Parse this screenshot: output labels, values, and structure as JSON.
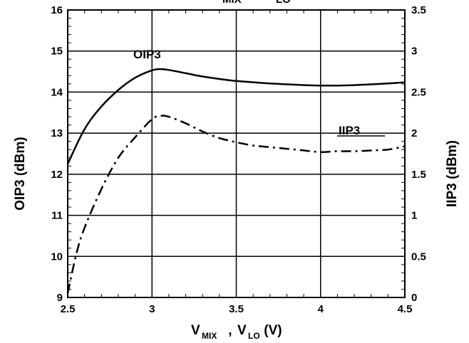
{
  "chart_data": {
    "type": "line",
    "title_fragment": {
      "main1": "MIX",
      "main2": "LO"
    },
    "xlabel": {
      "v1": "V",
      "sub1": "MIX",
      "sep": " , ",
      "v2": "V",
      "sub2": "LO",
      "unit": " (V)"
    },
    "ylabel_left": "OIP3 (dBm)",
    "ylabel_right": "IIP3 (dBm)",
    "xlim": [
      2.5,
      4.5
    ],
    "ylim_left": [
      9,
      16
    ],
    "ylim_right": [
      0,
      3.5
    ],
    "x_ticks": [
      "2.5",
      "3",
      "3.5",
      "4",
      "4.5"
    ],
    "y_left_ticks": [
      "9",
      "10",
      "11",
      "12",
      "13",
      "14",
      "15",
      "16"
    ],
    "y_right_ticks": [
      "0",
      "0.5",
      "1",
      "1.5",
      "2",
      "2.5",
      "3",
      "3.5"
    ],
    "grid": true,
    "series": [
      {
        "name": "OIP3",
        "axis": "left",
        "style": "solid",
        "x": [
          2.5,
          2.6,
          2.7,
          2.8,
          2.9,
          3.0,
          3.05,
          3.1,
          3.2,
          3.3,
          3.4,
          3.5,
          3.6,
          3.7,
          3.8,
          3.9,
          4.0,
          4.1,
          4.2,
          4.3,
          4.4,
          4.5
        ],
        "y": [
          12.25,
          13.1,
          13.65,
          14.05,
          14.35,
          14.53,
          14.56,
          14.54,
          14.46,
          14.38,
          14.32,
          14.27,
          14.24,
          14.21,
          14.19,
          14.17,
          14.16,
          14.16,
          14.17,
          14.19,
          14.21,
          14.24
        ]
      },
      {
        "name": "IIP3",
        "axis": "right",
        "style": "dash-dot",
        "x": [
          2.5,
          2.55,
          2.6,
          2.7,
          2.8,
          2.9,
          3.0,
          3.05,
          3.1,
          3.2,
          3.3,
          3.4,
          3.5,
          3.6,
          3.7,
          3.8,
          3.9,
          4.0,
          4.1,
          4.2,
          4.3,
          4.4,
          4.5
        ],
        "y": [
          0.05,
          0.52,
          0.85,
          1.32,
          1.7,
          1.95,
          2.17,
          2.21,
          2.2,
          2.12,
          2.02,
          1.94,
          1.89,
          1.85,
          1.83,
          1.81,
          1.79,
          1.77,
          1.78,
          1.78,
          1.79,
          1.8,
          1.84
        ]
      }
    ],
    "colors": {
      "line": "#000000",
      "grid": "#000000",
      "background": "#ffffff"
    }
  }
}
